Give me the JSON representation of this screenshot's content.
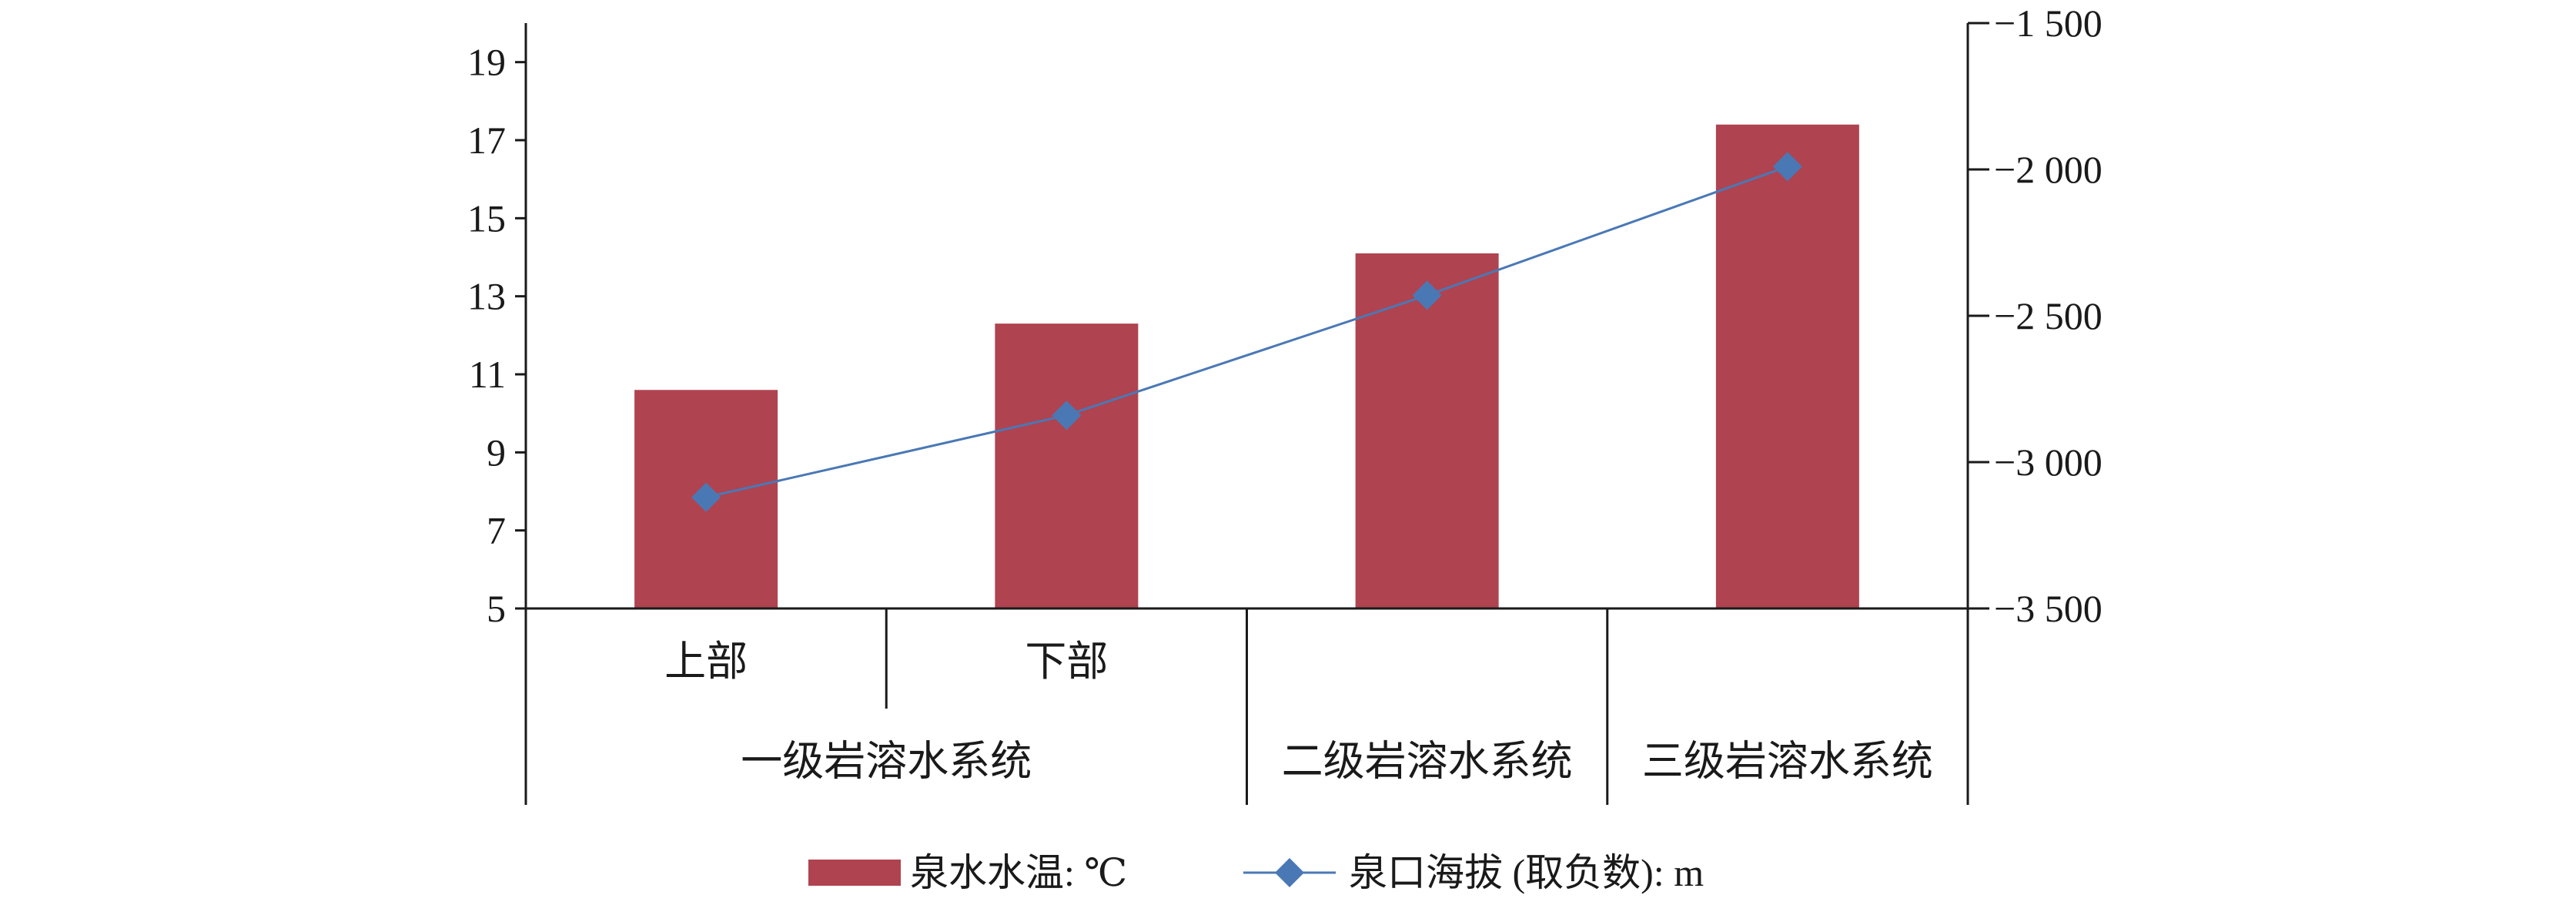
{
  "chart_data": {
    "type": "bar",
    "categories": [
      "上部",
      "下部",
      "",
      ""
    ],
    "groups": [
      {
        "label": "一级岩溶水系统",
        "span": [
          0,
          1
        ]
      },
      {
        "label": "二级岩溶水系统",
        "span": [
          2,
          2
        ]
      },
      {
        "label": "三级岩溶水系统",
        "span": [
          3,
          3
        ]
      }
    ],
    "series": [
      {
        "name": "泉水水温: ℃",
        "type": "bar",
        "axis": "left",
        "color": "#b04350",
        "values": [
          10.6,
          12.3,
          14.1,
          17.4
        ]
      },
      {
        "name": "泉口海拔 (取负数): m",
        "type": "line",
        "axis": "right",
        "color": "#4a78b5",
        "marker": "diamond",
        "values": [
          -3120,
          -2840,
          -2430,
          -1990
        ]
      }
    ],
    "y_left": {
      "lim": [
        5,
        20
      ],
      "ticks": [
        5,
        7,
        9,
        11,
        13,
        15,
        17,
        19
      ],
      "tick_labels": [
        "5",
        "7",
        "9",
        "11",
        "13",
        "15",
        "17",
        "19"
      ]
    },
    "y_right": {
      "lim": [
        -3500,
        -1500
      ],
      "ticks": [
        -3500,
        -3000,
        -2500,
        -2000,
        -1500
      ],
      "tick_labels": [
        "−3 500",
        "−3 000",
        "−2 500",
        "−2 000",
        "−1 500"
      ]
    },
    "grid": false,
    "legend": {
      "position": "bottom",
      "entries": [
        "泉水水温: ℃",
        "泉口海拔 (取负数): m"
      ]
    }
  }
}
